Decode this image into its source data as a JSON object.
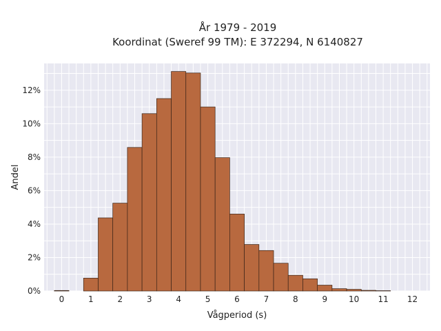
{
  "chart_data": {
    "type": "bar",
    "title": [
      "År 1979 - 2019",
      "Koordinat (Sweref 99 TM): E 372294, N 6140827"
    ],
    "xlabel": "Vågperiod (s)",
    "ylabel": "Andel",
    "x_ticks": [
      0,
      1,
      2,
      3,
      4,
      5,
      6,
      7,
      8,
      9,
      10,
      11,
      12
    ],
    "y_ticks": [
      0,
      2,
      4,
      6,
      8,
      10,
      12
    ],
    "y_tick_labels": [
      "0%",
      "2%",
      "4%",
      "6%",
      "8%",
      "10%",
      "12%"
    ],
    "xlim": [
      -0.6,
      12.6
    ],
    "ylim": [
      0,
      13.6
    ],
    "bin_width": 0.5,
    "bin_starts": [
      0,
      0.5,
      1,
      1.5,
      2,
      2.5,
      3,
      3.5,
      4,
      4.5,
      5,
      5.5,
      6,
      6.5,
      7,
      7.5,
      8,
      8.5,
      9,
      9.5,
      10,
      10.5,
      11,
      11.5
    ],
    "values": [
      0.03,
      0,
      0.77,
      4.37,
      5.25,
      8.58,
      10.6,
      11.5,
      13.12,
      13.03,
      11.0,
      7.97,
      4.6,
      2.78,
      2.42,
      1.66,
      0.94,
      0.73,
      0.35,
      0.14,
      0.1,
      0.04,
      0.02,
      0
    ],
    "grid": true,
    "colors": {
      "bar_fill": "#b8693f",
      "bar_edge": "#3a2418",
      "plot_bg": "#e8e8f1",
      "grid": "#ffffff"
    }
  }
}
